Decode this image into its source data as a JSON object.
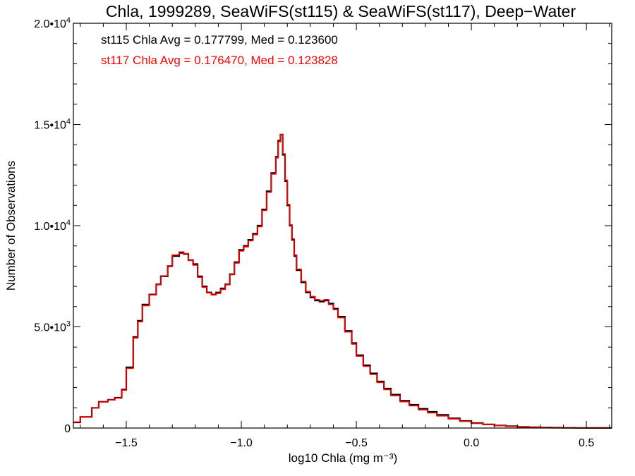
{
  "chart_data": {
    "type": "line",
    "title": "Chla, 1999289, SeaWiFS(st115) & SeaWiFS(st117), Deep−Water",
    "xlabel": "log10 Chla (mg m⁻³)",
    "ylabel": "Number of Observations",
    "xlim": [
      -1.73,
      0.61
    ],
    "ylim": [
      0,
      20000
    ],
    "grid": false,
    "x_ticks": [
      {
        "value": -1.5,
        "label": "−1.5"
      },
      {
        "value": -1.0,
        "label": "−1.0"
      },
      {
        "value": -0.5,
        "label": "−0.5"
      },
      {
        "value": 0.0,
        "label": "0.0"
      },
      {
        "value": 0.5,
        "label": "0.5"
      }
    ],
    "y_ticks": [
      {
        "value": 0,
        "mantissa": "0",
        "exp": ""
      },
      {
        "value": 5000,
        "mantissa": "5.0•10",
        "exp": "3"
      },
      {
        "value": 10000,
        "mantissa": "1.0•10",
        "exp": "4"
      },
      {
        "value": 15000,
        "mantissa": "1.5•10",
        "exp": "4"
      },
      {
        "value": 20000,
        "mantissa": "2.0•10",
        "exp": "4"
      }
    ],
    "annotations": [
      {
        "text": "st115 Chla Avg = 0.177799, Med = 0.123600",
        "color": "#000000"
      },
      {
        "text": "st117 Chla Avg = 0.176470, Med = 0.123828",
        "color": "#ff0000"
      }
    ],
    "series": [
      {
        "color": "#000000",
        "step": true,
        "x": [
          -1.73,
          -1.7,
          -1.65,
          -1.62,
          -1.58,
          -1.55,
          -1.52,
          -1.5,
          -1.47,
          -1.45,
          -1.43,
          -1.4,
          -1.37,
          -1.35,
          -1.32,
          -1.3,
          -1.27,
          -1.25,
          -1.23,
          -1.21,
          -1.19,
          -1.17,
          -1.15,
          -1.13,
          -1.11,
          -1.09,
          -1.07,
          -1.05,
          -1.03,
          -1.01,
          -0.99,
          -0.97,
          -0.95,
          -0.93,
          -0.91,
          -0.89,
          -0.87,
          -0.85,
          -0.84,
          -0.83,
          -0.82,
          -0.81,
          -0.8,
          -0.79,
          -0.78,
          -0.77,
          -0.76,
          -0.74,
          -0.72,
          -0.7,
          -0.68,
          -0.66,
          -0.64,
          -0.62,
          -0.6,
          -0.58,
          -0.55,
          -0.52,
          -0.5,
          -0.47,
          -0.44,
          -0.41,
          -0.38,
          -0.35,
          -0.31,
          -0.27,
          -0.23,
          -0.19,
          -0.15,
          -0.1,
          -0.05,
          0.0,
          0.05,
          0.1,
          0.15,
          0.2,
          0.25,
          0.3,
          0.35,
          0.4,
          0.45,
          0.5,
          0.55,
          0.61
        ],
        "y": [
          280,
          550,
          1000,
          1300,
          1400,
          1500,
          1900,
          3000,
          4500,
          5300,
          6100,
          6600,
          7100,
          7500,
          8000,
          8500,
          8650,
          8600,
          8300,
          8100,
          7500,
          7000,
          6700,
          6600,
          6700,
          6900,
          7100,
          7600,
          8200,
          8800,
          9000,
          9300,
          9600,
          10000,
          10800,
          11700,
          12600,
          13400,
          14200,
          14500,
          13500,
          12200,
          11000,
          10000,
          9300,
          8500,
          7800,
          7200,
          6700,
          6450,
          6300,
          6250,
          6300,
          6150,
          5900,
          5500,
          4800,
          4200,
          3600,
          3100,
          2700,
          2300,
          1950,
          1650,
          1350,
          1150,
          950,
          800,
          650,
          480,
          350,
          250,
          180,
          130,
          90,
          60,
          40,
          28,
          18,
          12,
          8,
          5,
          3,
          2
        ]
      },
      {
        "color": "#ff0000",
        "step": true,
        "x": [
          -1.73,
          -1.7,
          -1.65,
          -1.62,
          -1.58,
          -1.55,
          -1.52,
          -1.5,
          -1.47,
          -1.45,
          -1.43,
          -1.4,
          -1.37,
          -1.35,
          -1.32,
          -1.3,
          -1.27,
          -1.25,
          -1.23,
          -1.21,
          -1.19,
          -1.17,
          -1.15,
          -1.13,
          -1.11,
          -1.09,
          -1.07,
          -1.05,
          -1.03,
          -1.01,
          -0.99,
          -0.97,
          -0.95,
          -0.93,
          -0.91,
          -0.89,
          -0.87,
          -0.85,
          -0.84,
          -0.83,
          -0.82,
          -0.81,
          -0.8,
          -0.79,
          -0.78,
          -0.77,
          -0.76,
          -0.74,
          -0.72,
          -0.7,
          -0.68,
          -0.66,
          -0.64,
          -0.62,
          -0.6,
          -0.58,
          -0.55,
          -0.52,
          -0.5,
          -0.47,
          -0.44,
          -0.41,
          -0.38,
          -0.35,
          -0.31,
          -0.27,
          -0.23,
          -0.19,
          -0.15,
          -0.1,
          -0.05,
          0.0,
          0.05,
          0.1,
          0.15,
          0.2,
          0.25,
          0.3,
          0.35,
          0.4,
          0.45,
          0.5,
          0.55,
          0.61
        ],
        "y": [
          300,
          560,
          1000,
          1290,
          1390,
          1480,
          1870,
          2950,
          4450,
          5250,
          6050,
          6580,
          7080,
          7520,
          8020,
          8550,
          8700,
          8620,
          8280,
          8050,
          7450,
          6950,
          6680,
          6580,
          6650,
          6850,
          7080,
          7580,
          8150,
          8750,
          8950,
          9250,
          9550,
          9950,
          10750,
          11650,
          12550,
          13350,
          14150,
          14500,
          13550,
          12250,
          11050,
          10050,
          9350,
          8550,
          7850,
          7250,
          6750,
          6500,
          6350,
          6300,
          6350,
          6100,
          5850,
          5450,
          4750,
          4150,
          3550,
          3050,
          2650,
          2250,
          1900,
          1600,
          1300,
          1100,
          900,
          750,
          600,
          450,
          330,
          230,
          170,
          120,
          85,
          55,
          38,
          26,
          17,
          11,
          7,
          4,
          3,
          2
        ]
      }
    ]
  }
}
